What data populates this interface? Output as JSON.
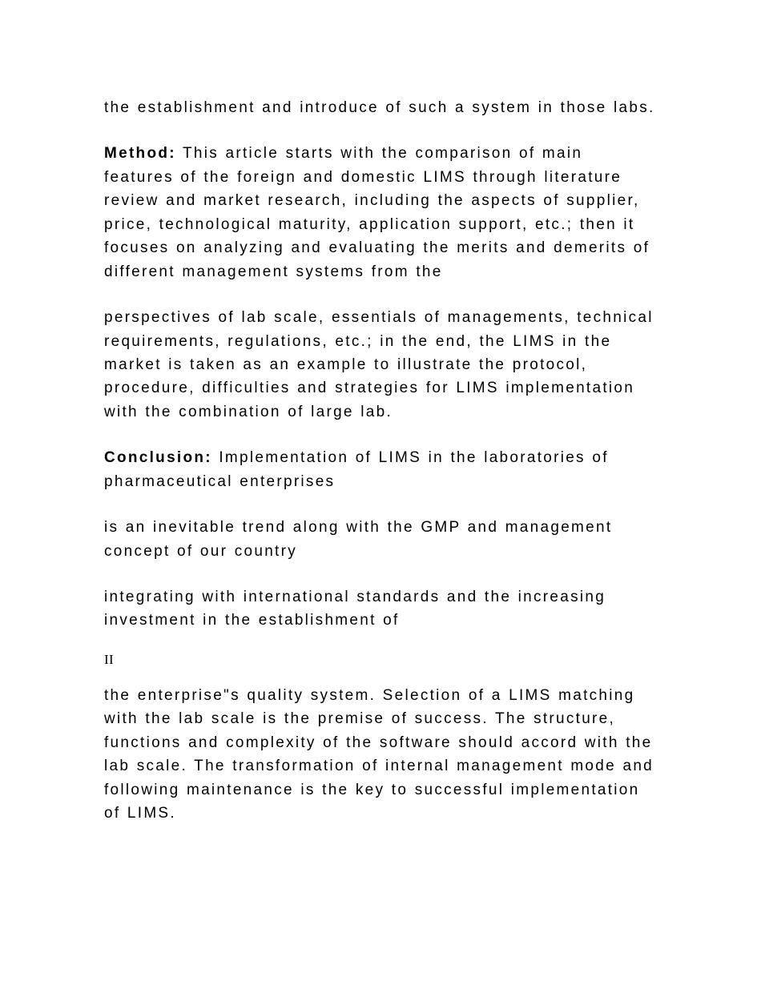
{
  "paragraphs": {
    "p1": "the establishment and introduce of such a system in those labs.",
    "p2_bold": "Method:",
    "p2_text": " This article starts with the comparison of main features of the foreign and domestic LIMS through literature review and market research, including the aspects of supplier, price, technological maturity, application support, etc.; then it focuses on analyzing and evaluating the merits and demerits of different management systems from the",
    "p3": "perspectives of lab scale, essentials of managements, technical requirements, regulations, etc.; in the end, the LIMS in the market is taken as an example to illustrate the protocol, procedure, difficulties and strategies for LIMS implementation with the combination of large lab.",
    "p4_bold": "Conclusion:",
    "p4_text": " Implementation of LIMS in the laboratories of pharmaceutical enterprises",
    "p5": "is an inevitable trend along with the GMP and management concept of our country",
    "p6": "integrating with international standards and the increasing investment in the establishment of",
    "roman": "II",
    "p7": "the enterprise\"s quality system. Selection of a LIMS matching with the lab scale is the premise of success. The structure, functions and complexity of the software should accord with the lab scale. The transformation of internal management mode and following maintenance is the key to successful implementation of LIMS."
  }
}
